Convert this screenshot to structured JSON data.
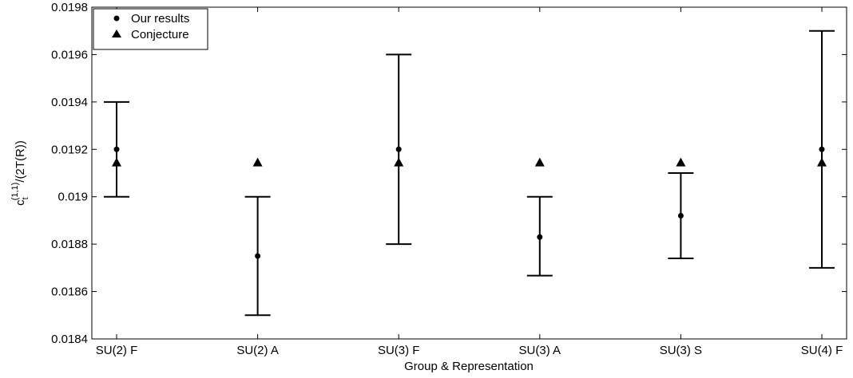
{
  "chart_data": {
    "type": "scatter",
    "title": "",
    "xlabel": "Group & Representation",
    "ylabel": "c_t^{(1,1)}/(2T(R))",
    "ylabel_parts": {
      "base": "c",
      "superscript": "(1,1)",
      "subscript": "t",
      "suffix": "/(2T(R))"
    },
    "categories": [
      "SU(2) F",
      "SU(2) A",
      "SU(3) F",
      "SU(3) A",
      "SU(3) S",
      "SU(4) F"
    ],
    "ylim": [
      0.0184,
      0.0198
    ],
    "yticks": [
      "0.0184",
      "0.0186",
      "0.0188",
      "0.019",
      "0.0192",
      "0.0194",
      "0.0196",
      "0.0198"
    ],
    "ytick_values": [
      0.0184,
      0.0186,
      0.0188,
      0.019,
      0.0192,
      0.0194,
      0.0196,
      0.0198
    ],
    "grid": false,
    "legend_position": "top-left",
    "series": [
      {
        "name": "Our results",
        "marker": "circle",
        "values": [
          0.0192,
          0.01875,
          0.0192,
          0.01883,
          0.01892,
          0.0192
        ],
        "error_low": [
          0.019,
          0.0185,
          0.0188,
          0.018667,
          0.01874,
          0.0187
        ],
        "error_high": [
          0.0194,
          0.019,
          0.0196,
          0.019,
          0.0191,
          0.0197
        ]
      },
      {
        "name": "Conjecture",
        "marker": "triangle",
        "values": [
          0.019145,
          0.019145,
          0.019145,
          0.019145,
          0.019145,
          0.019145
        ]
      }
    ],
    "colors": {
      "marker": "#000000",
      "axis": "#000000",
      "background": "#ffffff"
    }
  }
}
